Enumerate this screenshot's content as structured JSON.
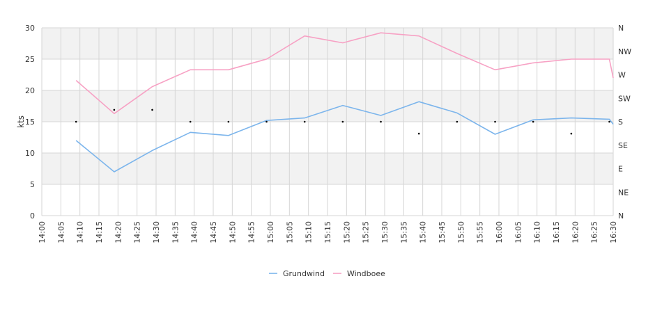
{
  "chart_data": {
    "type": "line",
    "ylabel": "kts",
    "ylim": [
      0,
      30
    ],
    "y_ticks": [
      0,
      5,
      10,
      15,
      20,
      25,
      30
    ],
    "x_tick_labels": [
      "14:00",
      "14:05",
      "14:10",
      "14:15",
      "14:20",
      "14:25",
      "14:30",
      "14:35",
      "14:40",
      "14:45",
      "14:50",
      "14:55",
      "15:00",
      "15:05",
      "15:10",
      "15:15",
      "15:20",
      "15:25",
      "15:30",
      "15:35",
      "15:40",
      "15:45",
      "15:50",
      "15:55",
      "16:00",
      "16:05",
      "16:10",
      "16:15",
      "16:20",
      "16:25",
      "16:30"
    ],
    "right_axis_labels": [
      "N",
      "NW",
      "W",
      "SW",
      "S",
      "SE",
      "E",
      "NE",
      "N"
    ],
    "grid": true,
    "legend_position": "bottom",
    "series": [
      {
        "name": "Grundwind",
        "color": "#7cb5ec",
        "points": [
          {
            "x": "14:09",
            "y": 12
          },
          {
            "x": "14:19",
            "y": 7
          },
          {
            "x": "14:29",
            "y": 10.4
          },
          {
            "x": "14:39",
            "y": 13.3
          },
          {
            "x": "14:49",
            "y": 12.8
          },
          {
            "x": "14:59",
            "y": 15.2
          },
          {
            "x": "15:09",
            "y": 15.6
          },
          {
            "x": "15:19",
            "y": 17.6
          },
          {
            "x": "15:29",
            "y": 16
          },
          {
            "x": "15:39",
            "y": 18.2
          },
          {
            "x": "15:49",
            "y": 16.4
          },
          {
            "x": "15:59",
            "y": 13
          },
          {
            "x": "16:09",
            "y": 15.3
          },
          {
            "x": "16:19",
            "y": 15.6
          },
          {
            "x": "16:29",
            "y": 15.4
          },
          {
            "x": "16:30",
            "y": 14.6
          }
        ]
      },
      {
        "name": "Windboee",
        "color": "#f7a1c4",
        "points": [
          {
            "x": "14:09",
            "y": 21.6
          },
          {
            "x": "14:19",
            "y": 16.3
          },
          {
            "x": "14:29",
            "y": 20.6
          },
          {
            "x": "14:39",
            "y": 23.3
          },
          {
            "x": "14:49",
            "y": 23.3
          },
          {
            "x": "14:59",
            "y": 25
          },
          {
            "x": "15:09",
            "y": 28.7
          },
          {
            "x": "15:19",
            "y": 27.6
          },
          {
            "x": "15:29",
            "y": 29.2
          },
          {
            "x": "15:39",
            "y": 28.7
          },
          {
            "x": "15:49",
            "y": 25.9
          },
          {
            "x": "15:59",
            "y": 23.3
          },
          {
            "x": "16:09",
            "y": 24.4
          },
          {
            "x": "16:19",
            "y": 25
          },
          {
            "x": "16:29",
            "y": 25
          },
          {
            "x": "16:30",
            "y": 22
          }
        ]
      }
    ],
    "direction_points": [
      {
        "x": "14:09",
        "y": 15
      },
      {
        "x": "14:19",
        "y": 16.9
      },
      {
        "x": "14:29",
        "y": 16.9
      },
      {
        "x": "14:39",
        "y": 15
      },
      {
        "x": "14:49",
        "y": 15
      },
      {
        "x": "14:59",
        "y": 15
      },
      {
        "x": "15:09",
        "y": 15
      },
      {
        "x": "15:19",
        "y": 15
      },
      {
        "x": "15:29",
        "y": 15
      },
      {
        "x": "15:39",
        "y": 13.1
      },
      {
        "x": "15:49",
        "y": 15
      },
      {
        "x": "15:59",
        "y": 15
      },
      {
        "x": "16:09",
        "y": 15
      },
      {
        "x": "16:19",
        "y": 13.1
      },
      {
        "x": "16:29",
        "y": 15
      }
    ],
    "legend": [
      {
        "name": "Grundwind",
        "color": "#7cb5ec"
      },
      {
        "name": "Windboee",
        "color": "#f7a1c4"
      }
    ],
    "band_color": "#f2f2f2",
    "grid_color": "#d6d6d6"
  }
}
